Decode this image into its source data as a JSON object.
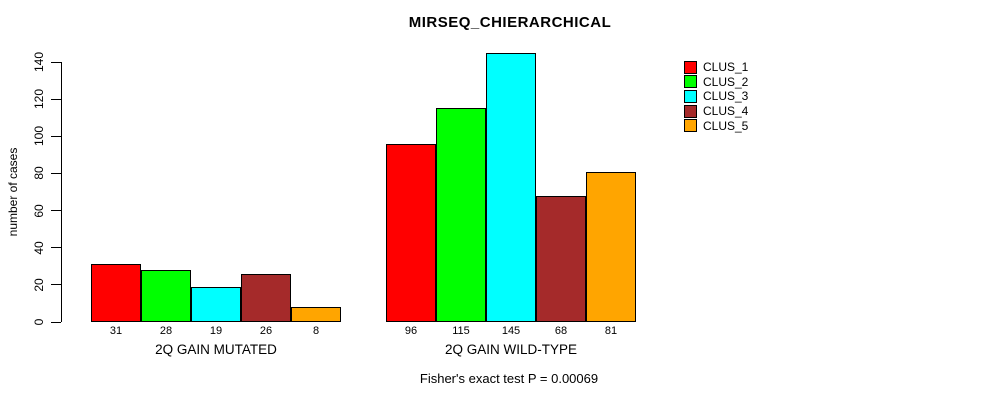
{
  "title": "MIRSEQ_CHIERARCHICAL",
  "y_axis": {
    "label": "number of cases",
    "ticks": [
      0,
      20,
      40,
      60,
      80,
      100,
      120,
      140
    ]
  },
  "footer_annotation": "Fisher's exact test P = 0.00069",
  "chart_data": {
    "type": "bar",
    "title": "MIRSEQ_CHIERARCHICAL",
    "xlabel": "",
    "ylabel": "number of cases",
    "ylim": [
      0,
      145
    ],
    "y_ticks": [
      0,
      20,
      40,
      60,
      80,
      100,
      120,
      140
    ],
    "grid": false,
    "legend_position": "right",
    "bar_value_labels": true,
    "categories": [
      "2Q GAIN MUTATED",
      "2Q GAIN WILD-TYPE"
    ],
    "series": [
      {
        "name": "CLUS_1",
        "color": "#ff0000",
        "values": [
          31,
          96
        ]
      },
      {
        "name": "CLUS_2",
        "color": "#00ff00",
        "values": [
          28,
          115
        ]
      },
      {
        "name": "CLUS_3",
        "color": "#00ffff",
        "values": [
          19,
          145
        ]
      },
      {
        "name": "CLUS_4",
        "color": "#a52a2a",
        "values": [
          26,
          68
        ]
      },
      {
        "name": "CLUS_5",
        "color": "#ffa500",
        "values": [
          8,
          81
        ]
      }
    ],
    "annotation": "Fisher's exact test P = 0.00069"
  }
}
